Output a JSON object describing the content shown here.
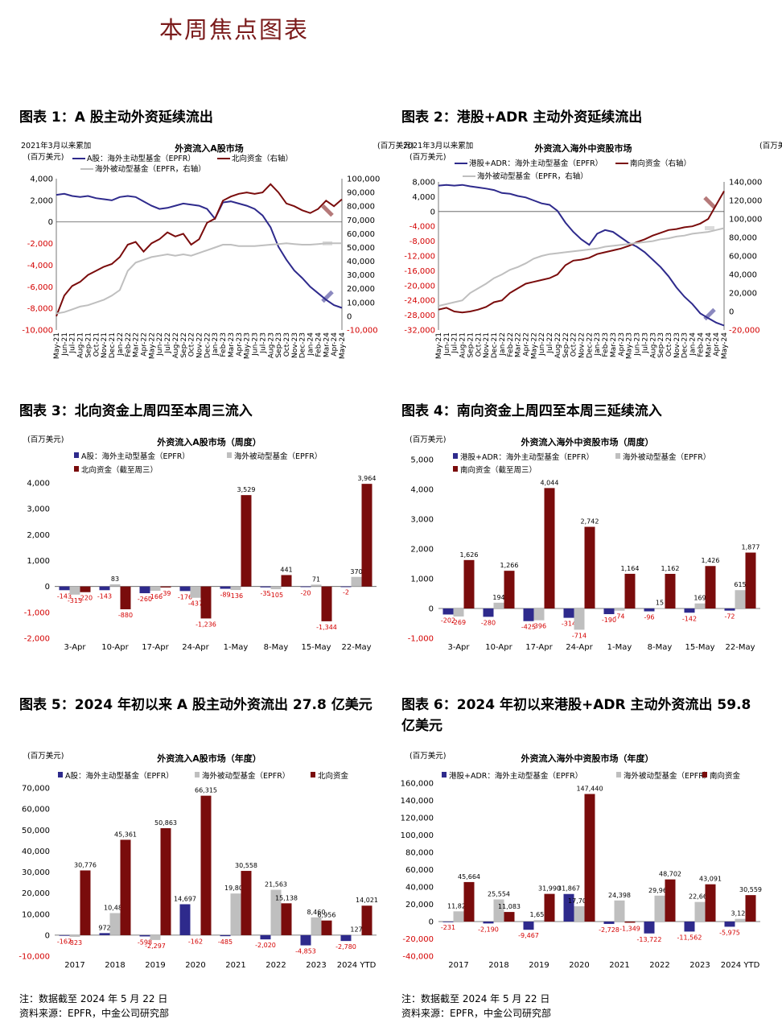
{
  "page_title": "本周焦点图表",
  "figures": [
    {
      "title": "图表 1：A 股主动外资延续流出"
    },
    {
      "title": "图表 2：港股+ADR 主动外资延续流出"
    },
    {
      "title": "图表 3：北向资金上周四至本周三流入"
    },
    {
      "title": "图表 4：南向资金上周四至本周三延续流入"
    },
    {
      "title": "图表 5：2024 年初以来 A 股主动外资流出 27.8 亿美元"
    },
    {
      "title": "图表 6：2024 年初以来港股+ADR 主动外资流出 59.8 亿美元"
    }
  ],
  "notes": [
    {
      "note": "注：数据截至 2024 年 5 月 22 日",
      "source": "资料来源：EPFR，中金公司研究部"
    },
    {
      "note": "注：数据截至 2024 年 5 月 22 日",
      "source": "资料来源：EPFR，中金公司研究部"
    }
  ],
  "colors": {
    "navy": "#2e2a8c",
    "gray": "#bfbfbf",
    "red": "#7a0c0c",
    "neg_label": "#d40000"
  },
  "chart_data": [
    {
      "type": "line",
      "title": "外资流入A股市场",
      "subtitle_left": "2021年3月以来累加",
      "unit_left": "(百万美元)",
      "unit_right": "(百万美元)",
      "x": [
        "May-21",
        "Jun-21",
        "Jul-21",
        "Aug-21",
        "Sep-21",
        "Oct-21",
        "Nov-21",
        "Dec-21",
        "Jan-22",
        "Feb-22",
        "Mar-22",
        "Apr-22",
        "May-22",
        "Jun-22",
        "Jul-22",
        "Aug-22",
        "Sep-22",
        "Oct-22",
        "Nov-22",
        "Dec-22",
        "Jan-23",
        "Feb-23",
        "Mar-23",
        "Apr-23",
        "May-23",
        "Jun-23",
        "Jul-23",
        "Aug-23",
        "Sep-23",
        "Oct-23",
        "Nov-23",
        "Dec-23",
        "Jan-24",
        "Feb-24",
        "Mar-24",
        "Apr-24",
        "May-24"
      ],
      "ylim_left": [
        -10000,
        4000
      ],
      "yticks_left": [
        "-10,000",
        "-8,000",
        "-6,000",
        "-4,000",
        "-2,000",
        "0",
        "2,000",
        "4,000"
      ],
      "ylim_right": [
        -10000,
        100000
      ],
      "yticks_right": [
        "-10,000",
        "0",
        "10,000",
        "20,000",
        "30,000",
        "40,000",
        "50,000",
        "60,000",
        "70,000",
        "80,000",
        "90,000",
        "100,000"
      ],
      "series": [
        {
          "name": "A股：海外主动型基金（EPFR）",
          "axis": "left",
          "values": [
            2500,
            2600,
            2400,
            2300,
            2400,
            2200,
            2100,
            2000,
            2300,
            2400,
            2300,
            1900,
            1500,
            1200,
            1300,
            1500,
            1700,
            1600,
            1500,
            1200,
            300,
            1800,
            1900,
            1700,
            1500,
            1200,
            600,
            -500,
            -2300,
            -3500,
            -4500,
            -5200,
            -6000,
            -6600,
            -7200,
            -7700,
            -7950
          ]
        },
        {
          "name": "北向资金（右轴）",
          "axis": "right",
          "values": [
            0,
            15000,
            22000,
            25000,
            30000,
            33000,
            36000,
            38000,
            43000,
            52000,
            54000,
            47000,
            53000,
            56000,
            61000,
            58000,
            60000,
            52000,
            56000,
            68000,
            71000,
            84000,
            87000,
            89000,
            90000,
            89000,
            90000,
            96000,
            90000,
            82000,
            80000,
            77000,
            75000,
            78000,
            84000,
            80000,
            85000
          ]
        },
        {
          "name": "海外被动型基金（EPFR，右轴）",
          "axis": "right",
          "values": [
            2000,
            3000,
            5000,
            7000,
            8000,
            10000,
            12000,
            15000,
            19000,
            33000,
            39000,
            41000,
            43000,
            44000,
            45000,
            44000,
            45000,
            44000,
            46000,
            48000,
            50000,
            52000,
            52000,
            51000,
            51000,
            51000,
            51500,
            52000,
            52500,
            53000,
            52500,
            52000,
            52000,
            52500,
            53000,
            53000,
            53000
          ]
        }
      ]
    },
    {
      "type": "line",
      "title": "外资流入海外中资股市场",
      "subtitle_left": "2021年3月以来累加",
      "unit_left": "(百万美元)",
      "unit_right": "(百万美元)",
      "x": [
        "May-21",
        "Jun-21",
        "Jul-21",
        "Aug-21",
        "Sep-21",
        "Oct-21",
        "Nov-21",
        "Dec-21",
        "Jan-22",
        "Feb-22",
        "Mar-22",
        "Apr-22",
        "May-22",
        "Jun-22",
        "Jul-22",
        "Aug-22",
        "Sep-22",
        "Oct-22",
        "Nov-22",
        "Dec-22",
        "Jan-23",
        "Feb-23",
        "Mar-23",
        "Apr-23",
        "May-23",
        "Jun-23",
        "Jul-23",
        "Aug-23",
        "Sep-23",
        "Oct-23",
        "Nov-23",
        "Dec-23",
        "Jan-24",
        "Feb-24",
        "Mar-24",
        "Apr-24",
        "May-24"
      ],
      "ylim_left": [
        -32000,
        8000
      ],
      "yticks_left": [
        "-32,000",
        "-28,000",
        "-24,000",
        "-20,000",
        "-16,000",
        "-12,000",
        "-8,000",
        "-4,000",
        "0",
        "4,000",
        "8,000"
      ],
      "ylim_right": [
        -20000,
        140000
      ],
      "yticks_right": [
        "-20,000",
        "0",
        "20,000",
        "40,000",
        "60,000",
        "80,000",
        "100,000",
        "120,000",
        "140,000"
      ],
      "series": [
        {
          "name": "港股+ADR：海外主动型基金（EPFR）",
          "axis": "left",
          "values": [
            7000,
            7200,
            7000,
            7200,
            6800,
            6500,
            6200,
            5800,
            5000,
            4800,
            4200,
            3800,
            3000,
            2200,
            1800,
            200,
            -3000,
            -5500,
            -7500,
            -9000,
            -6000,
            -5000,
            -5500,
            -7000,
            -8500,
            -9500,
            -11000,
            -13000,
            -15000,
            -17500,
            -20500,
            -23000,
            -25000,
            -27500,
            -28800,
            -30000,
            -30800
          ]
        },
        {
          "name": "南向资金（右轴）",
          "axis": "right",
          "values": [
            2000,
            4000,
            0,
            -1000,
            0,
            2000,
            5000,
            10000,
            12000,
            20000,
            25000,
            30000,
            32000,
            34000,
            36000,
            40000,
            50000,
            55000,
            56000,
            58000,
            62000,
            64000,
            66000,
            68000,
            71000,
            75000,
            78000,
            82000,
            85000,
            88000,
            89000,
            91000,
            92000,
            95000,
            100000,
            115000,
            130000
          ]
        },
        {
          "name": "海外被动型基金（EPFR，右轴）",
          "axis": "right",
          "values": [
            6000,
            8000,
            10000,
            12000,
            20000,
            25000,
            30000,
            36000,
            40000,
            45000,
            48000,
            52000,
            57000,
            60000,
            62000,
            63000,
            64000,
            65000,
            66000,
            67000,
            68000,
            70000,
            71000,
            72000,
            73000,
            74000,
            75000,
            76000,
            78000,
            79000,
            81000,
            82000,
            84000,
            85000,
            86000,
            88000,
            90000
          ]
        }
      ]
    },
    {
      "type": "bar",
      "title": "外资流入A股市场（周度）",
      "unit": "(百万美元)",
      "categories": [
        "3-Apr",
        "10-Apr",
        "17-Apr",
        "24-Apr",
        "1-May",
        "8-May",
        "15-May",
        "22-May"
      ],
      "ylim": [
        -2000,
        4000
      ],
      "yticks": [
        "-2,000",
        "-1,000",
        "0",
        "1,000",
        "2,000",
        "3,000",
        "4,000"
      ],
      "series": [
        {
          "name": "A股：海外主动型基金（EPFR）",
          "values": [
            -143,
            -143,
            -260,
            -176,
            -89,
            -35,
            -20,
            -2
          ]
        },
        {
          "name": "海外被动型基金（EPFR）",
          "values": [
            -315,
            83,
            -166,
            -437,
            -136,
            -105,
            71,
            370
          ]
        },
        {
          "name": "北向资金（截至周三）",
          "values": [
            -220,
            -880,
            -39,
            -1236,
            3529,
            441,
            -1344,
            3964
          ]
        }
      ]
    },
    {
      "type": "bar",
      "title": "外资流入海外中资股市场（周度）",
      "unit": "(百万美元)",
      "categories": [
        "3-Apr",
        "10-Apr",
        "17-Apr",
        "24-Apr",
        "1-May",
        "8-May",
        "15-May",
        "22-May"
      ],
      "ylim": [
        -1000,
        5000
      ],
      "yticks": [
        "-1,000",
        "0",
        "1,000",
        "2,000",
        "3,000",
        "4,000",
        "5,000"
      ],
      "series": [
        {
          "name": "港股+ADR：海外主动型基金（EPFR）",
          "values": [
            -202,
            -280,
            -425,
            -314,
            -190,
            -96,
            -142,
            -72
          ]
        },
        {
          "name": "海外被动型基金（EPFR）",
          "values": [
            -269,
            194,
            -396,
            -714,
            -74,
            15,
            169,
            615
          ]
        },
        {
          "name": "南向资金（截至周三）",
          "values": [
            1626,
            1266,
            4044,
            2742,
            1164,
            1162,
            1426,
            1877
          ]
        }
      ]
    },
    {
      "type": "bar",
      "title": "外资流入A股市场（年度）",
      "unit": "(百万美元)",
      "categories": [
        "2017",
        "2018",
        "2019",
        "2020",
        "2021",
        "2022",
        "2023",
        "2024 YTD"
      ],
      "ylim": [
        -10000,
        70000
      ],
      "yticks": [
        "-10,000",
        "0",
        "10,000",
        "20,000",
        "30,000",
        "40,000",
        "50,000",
        "60,000",
        "70,000"
      ],
      "series": [
        {
          "name": "A股：海外主动型基金（EPFR）",
          "values": [
            -167,
            972,
            -598,
            14697,
            -485,
            -2020,
            -4853,
            -2780
          ]
        },
        {
          "name": "海外被动型基金（EPFR）",
          "values": [
            -823,
            10489,
            -2297,
            -162,
            19802,
            21563,
            8460,
            127
          ]
        },
        {
          "name": "北向资金",
          "values": [
            30776,
            45361,
            50863,
            66315,
            30558,
            15138,
            6956,
            14021
          ]
        }
      ]
    },
    {
      "type": "bar",
      "title": "外资流入海外中资股市场（年度）",
      "unit": "(百万美元)",
      "categories": [
        "2017",
        "2018",
        "2019",
        "2020",
        "2021",
        "2022",
        "2023",
        "2024 YTD"
      ],
      "ylim": [
        -40000,
        160000
      ],
      "yticks": [
        "-40,000",
        "-20,000",
        "0",
        "20,000",
        "40,000",
        "60,000",
        "80,000",
        "100,000",
        "120,000",
        "140,000",
        "160,000"
      ],
      "series": [
        {
          "name": "港股+ADR：海外主动型基金（EPFR）",
          "values": [
            -231,
            -2190,
            -9467,
            31867,
            -2728,
            -13722,
            -11562,
            -5975
          ]
        },
        {
          "name": "海外被动型基金（EPFR）",
          "values": [
            11822,
            25554,
            1650,
            17705,
            24398,
            29968,
            22668,
            3125
          ]
        },
        {
          "name": "南向资金",
          "values": [
            45664,
            11083,
            31990,
            147440,
            -1349,
            48702,
            43091,
            30559
          ]
        }
      ]
    }
  ]
}
